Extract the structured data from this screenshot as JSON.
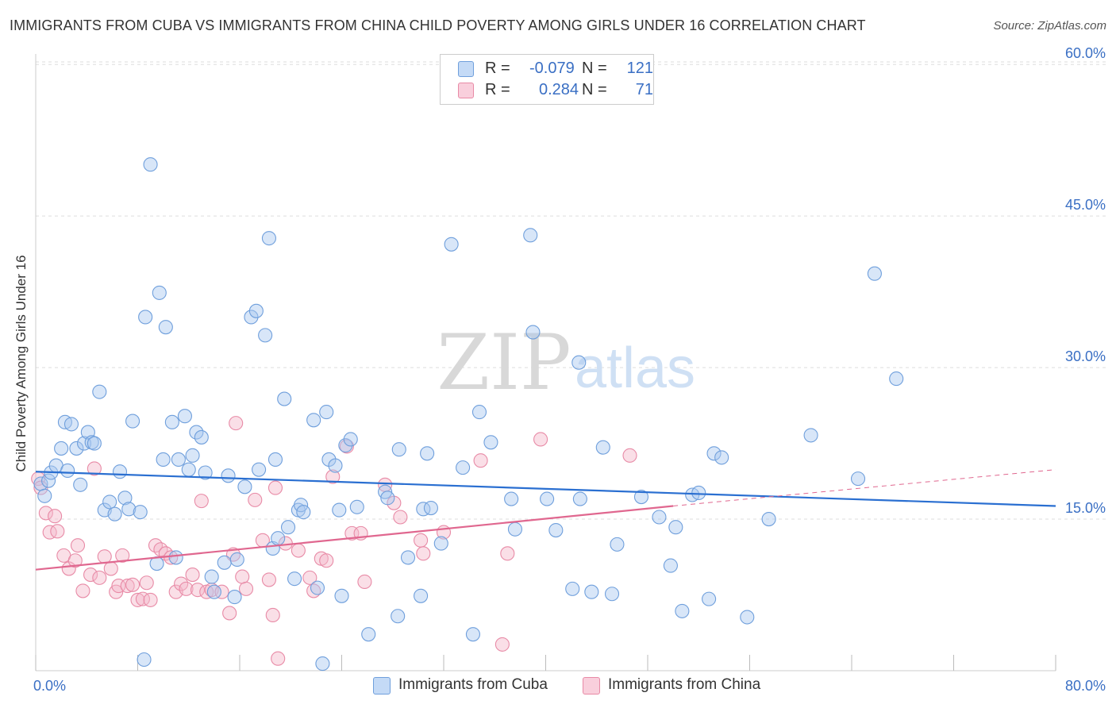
{
  "title": "IMMIGRANTS FROM CUBA VS IMMIGRANTS FROM CHINA CHILD POVERTY AMONG GIRLS UNDER 16 CORRELATION CHART",
  "source": "Source: ZipAtlas.com",
  "watermark": {
    "zip": "ZIP",
    "atlas": "atlas"
  },
  "legend": {
    "cuba": {
      "r_label": "R =",
      "r_value": "-0.079",
      "n_label": "N =",
      "n_value": "121"
    },
    "china": {
      "r_label": "R =",
      "r_value": "0.284",
      "n_label": "N =",
      "n_value": "71"
    }
  },
  "bottom_legend": {
    "cuba": "Immigrants from Cuba",
    "china": "Immigrants from China"
  },
  "colors": {
    "cuba_fill": "#a9c8f0",
    "cuba_stroke": "#6f9fdc",
    "cuba_line": "#2a6fd1",
    "china_fill": "#f5b7c9",
    "china_stroke": "#e88aa6",
    "china_line": "#e0678f",
    "axis_text": "#3a6fc4",
    "grid": "#dddddd"
  },
  "chart_data": {
    "type": "scatter",
    "title": "IMMIGRANTS FROM CUBA VS IMMIGRANTS FROM CHINA CHILD POVERTY AMONG GIRLS UNDER 16 CORRELATION CHART",
    "xlabel": "",
    "ylabel": "Child Poverty Among Girls Under 16",
    "xlim": [
      0,
      80
    ],
    "ylim": [
      0,
      63
    ],
    "x_ticks": [
      "0.0%",
      "80.0%"
    ],
    "y_ticks": [
      {
        "value": 15,
        "label": "15.0%"
      },
      {
        "value": 30,
        "label": "30.0%"
      },
      {
        "value": 45,
        "label": "45.0%"
      },
      {
        "value": 60,
        "label": "60.0%"
      }
    ],
    "grid": true,
    "legend_position": "top-center",
    "series": [
      {
        "name": "Immigrants from Cuba",
        "r": -0.079,
        "n": 121,
        "trend": {
          "x": [
            0,
            80
          ],
          "y": [
            19.7,
            16.3
          ]
        },
        "points": [
          [
            0.4,
            18.5
          ],
          [
            0.7,
            17.3
          ],
          [
            1.0,
            18.8
          ],
          [
            1.2,
            19.6
          ],
          [
            1.6,
            20.3
          ],
          [
            2.0,
            22.0
          ],
          [
            2.3,
            24.6
          ],
          [
            2.5,
            19.8
          ],
          [
            2.8,
            24.4
          ],
          [
            3.2,
            22.0
          ],
          [
            3.5,
            18.4
          ],
          [
            3.8,
            22.5
          ],
          [
            4.1,
            23.6
          ],
          [
            4.4,
            22.6
          ],
          [
            4.6,
            22.5
          ],
          [
            5.0,
            27.6
          ],
          [
            5.4,
            15.9
          ],
          [
            5.8,
            16.7
          ],
          [
            6.2,
            15.5
          ],
          [
            6.6,
            19.7
          ],
          [
            7.0,
            17.1
          ],
          [
            7.3,
            16.0
          ],
          [
            7.6,
            24.7
          ],
          [
            8.2,
            15.7
          ],
          [
            8.5,
            1.1
          ],
          [
            8.6,
            35.0
          ],
          [
            9.0,
            50.1
          ],
          [
            9.5,
            10.6
          ],
          [
            9.7,
            37.4
          ],
          [
            10.0,
            20.9
          ],
          [
            10.2,
            34.0
          ],
          [
            10.7,
            24.6
          ],
          [
            11.0,
            11.2
          ],
          [
            11.2,
            20.9
          ],
          [
            11.7,
            25.2
          ],
          [
            12.0,
            19.9
          ],
          [
            12.3,
            21.3
          ],
          [
            12.6,
            23.6
          ],
          [
            13.0,
            23.1
          ],
          [
            13.3,
            19.6
          ],
          [
            13.8,
            9.3
          ],
          [
            14.0,
            7.8
          ],
          [
            14.8,
            10.7
          ],
          [
            15.1,
            19.3
          ],
          [
            15.6,
            7.3
          ],
          [
            15.8,
            11.0
          ],
          [
            16.4,
            18.2
          ],
          [
            16.9,
            35.0
          ],
          [
            17.3,
            35.6
          ],
          [
            17.5,
            19.9
          ],
          [
            18.0,
            33.2
          ],
          [
            18.3,
            42.8
          ],
          [
            18.6,
            12.1
          ],
          [
            18.8,
            20.9
          ],
          [
            19.0,
            13.1
          ],
          [
            19.5,
            26.9
          ],
          [
            19.8,
            14.2
          ],
          [
            20.3,
            9.1
          ],
          [
            20.6,
            15.9
          ],
          [
            20.8,
            16.4
          ],
          [
            21.0,
            15.7
          ],
          [
            21.8,
            24.8
          ],
          [
            22.1,
            8.2
          ],
          [
            22.5,
            0.7
          ],
          [
            22.8,
            25.6
          ],
          [
            23.0,
            20.9
          ],
          [
            23.5,
            20.3
          ],
          [
            23.8,
            15.9
          ],
          [
            24.0,
            7.4
          ],
          [
            24.3,
            22.3
          ],
          [
            24.7,
            22.9
          ],
          [
            25.2,
            16.2
          ],
          [
            26.1,
            3.6
          ],
          [
            27.4,
            17.7
          ],
          [
            27.6,
            17.1
          ],
          [
            28.4,
            5.4
          ],
          [
            28.5,
            21.9
          ],
          [
            29.2,
            11.2
          ],
          [
            30.2,
            7.4
          ],
          [
            30.4,
            16.0
          ],
          [
            30.7,
            21.5
          ],
          [
            31.0,
            16.1
          ],
          [
            31.8,
            12.6
          ],
          [
            32.6,
            42.2
          ],
          [
            33.5,
            20.1
          ],
          [
            34.3,
            3.6
          ],
          [
            34.8,
            25.6
          ],
          [
            35.7,
            22.6
          ],
          [
            37.3,
            17.0
          ],
          [
            37.6,
            14.0
          ],
          [
            38.8,
            43.1
          ],
          [
            39.0,
            33.5
          ],
          [
            40.1,
            17.0
          ],
          [
            40.8,
            13.9
          ],
          [
            42.1,
            8.1
          ],
          [
            42.6,
            30.5
          ],
          [
            42.7,
            17.0
          ],
          [
            43.6,
            7.8
          ],
          [
            44.5,
            22.1
          ],
          [
            45.2,
            7.6
          ],
          [
            45.6,
            12.5
          ],
          [
            47.5,
            17.2
          ],
          [
            48.9,
            15.2
          ],
          [
            49.8,
            10.4
          ],
          [
            50.2,
            14.2
          ],
          [
            50.7,
            5.9
          ],
          [
            51.5,
            17.4
          ],
          [
            52.0,
            17.6
          ],
          [
            52.8,
            7.1
          ],
          [
            53.2,
            21.5
          ],
          [
            53.8,
            21.1
          ],
          [
            55.8,
            5.3
          ],
          [
            57.5,
            15.0
          ],
          [
            60.8,
            23.3
          ],
          [
            64.5,
            19.0
          ],
          [
            65.8,
            39.3
          ],
          [
            67.5,
            28.9
          ]
        ]
      },
      {
        "name": "Immigrants from China",
        "r": 0.284,
        "n": 71,
        "trend": {
          "x": [
            0,
            50
          ],
          "y": [
            10.0,
            16.3
          ]
        },
        "trend_dashed": {
          "x": [
            50,
            80
          ],
          "y": [
            16.3,
            19.9
          ]
        },
        "points": [
          [
            0.2,
            19.0
          ],
          [
            0.4,
            18.1
          ],
          [
            0.8,
            15.6
          ],
          [
            1.1,
            13.7
          ],
          [
            1.5,
            15.3
          ],
          [
            1.7,
            13.8
          ],
          [
            2.2,
            11.4
          ],
          [
            2.6,
            10.1
          ],
          [
            3.1,
            10.9
          ],
          [
            3.3,
            12.4
          ],
          [
            3.7,
            7.9
          ],
          [
            4.3,
            9.5
          ],
          [
            4.6,
            20.0
          ],
          [
            5.0,
            9.2
          ],
          [
            5.4,
            11.3
          ],
          [
            5.9,
            10.1
          ],
          [
            6.3,
            7.8
          ],
          [
            6.5,
            8.4
          ],
          [
            6.8,
            11.4
          ],
          [
            7.2,
            8.4
          ],
          [
            7.6,
            8.5
          ],
          [
            8.0,
            7.0
          ],
          [
            8.4,
            7.1
          ],
          [
            8.7,
            8.7
          ],
          [
            9.0,
            7.0
          ],
          [
            9.4,
            12.4
          ],
          [
            9.8,
            12.0
          ],
          [
            10.2,
            11.6
          ],
          [
            10.6,
            11.2
          ],
          [
            11.0,
            7.8
          ],
          [
            11.4,
            8.6
          ],
          [
            11.8,
            8.1
          ],
          [
            12.3,
            9.5
          ],
          [
            12.7,
            8.0
          ],
          [
            13.0,
            16.8
          ],
          [
            13.4,
            7.8
          ],
          [
            13.8,
            8.0
          ],
          [
            14.6,
            7.8
          ],
          [
            15.2,
            5.7
          ],
          [
            15.5,
            11.5
          ],
          [
            15.7,
            24.5
          ],
          [
            16.2,
            9.3
          ],
          [
            16.5,
            8.1
          ],
          [
            17.2,
            16.9
          ],
          [
            17.8,
            12.9
          ],
          [
            18.3,
            9.0
          ],
          [
            18.6,
            5.5
          ],
          [
            18.8,
            18.1
          ],
          [
            19.0,
            1.2
          ],
          [
            19.6,
            12.6
          ],
          [
            20.6,
            11.9
          ],
          [
            21.5,
            9.2
          ],
          [
            21.8,
            7.9
          ],
          [
            22.4,
            11.1
          ],
          [
            22.8,
            10.9
          ],
          [
            23.3,
            19.2
          ],
          [
            24.4,
            22.2
          ],
          [
            24.8,
            13.6
          ],
          [
            25.5,
            13.6
          ],
          [
            25.8,
            8.8
          ],
          [
            27.4,
            18.4
          ],
          [
            28.1,
            16.6
          ],
          [
            28.6,
            15.2
          ],
          [
            30.2,
            12.9
          ],
          [
            30.4,
            11.6
          ],
          [
            32.0,
            13.7
          ],
          [
            34.9,
            20.8
          ],
          [
            36.6,
            2.6
          ],
          [
            37.0,
            11.6
          ],
          [
            39.6,
            22.9
          ],
          [
            46.6,
            21.3
          ]
        ]
      }
    ]
  }
}
